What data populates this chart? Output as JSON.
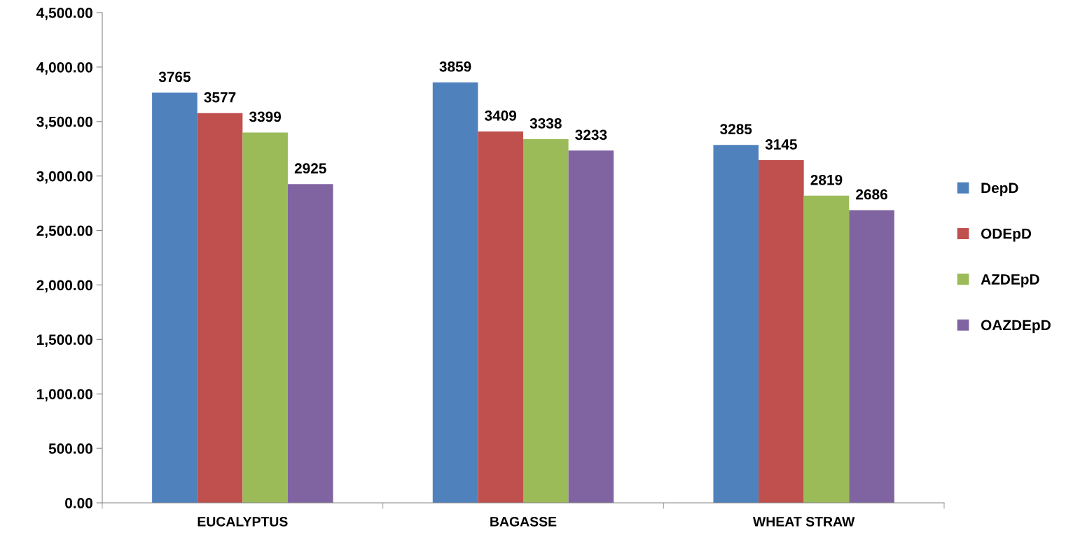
{
  "chart_data": {
    "type": "bar",
    "categories": [
      "EUCALYPTUS",
      "BAGASSE",
      "WHEAT STRAW"
    ],
    "series": [
      {
        "name": "DepD",
        "color": "#4f81bd",
        "values": [
          3765,
          3859,
          3285
        ]
      },
      {
        "name": "ODEpD",
        "color": "#c0504d",
        "values": [
          3577,
          3409,
          3145
        ]
      },
      {
        "name": "AZDEpD",
        "color": "#9bbb59",
        "values": [
          3399,
          3338,
          2819
        ]
      },
      {
        "name": "OAZDEpD",
        "color": "#8064a2",
        "values": [
          2925,
          3233,
          2686
        ]
      }
    ],
    "ylim": [
      0,
      4500
    ],
    "yticks": [
      {
        "value": 0,
        "label": "0.00"
      },
      {
        "value": 500,
        "label": "500.00"
      },
      {
        "value": 1000,
        "label": "1,000.00"
      },
      {
        "value": 1500,
        "label": "1,500.00"
      },
      {
        "value": 2000,
        "label": "2,000.00"
      },
      {
        "value": 2500,
        "label": "2,500.00"
      },
      {
        "value": 3000,
        "label": "3,000.00"
      },
      {
        "value": 3500,
        "label": "3,500.00"
      },
      {
        "value": 4000,
        "label": "4,000.00"
      },
      {
        "value": 4500,
        "label": "4,500.00"
      }
    ],
    "data_labels": true,
    "legend": "right",
    "grid": false
  }
}
